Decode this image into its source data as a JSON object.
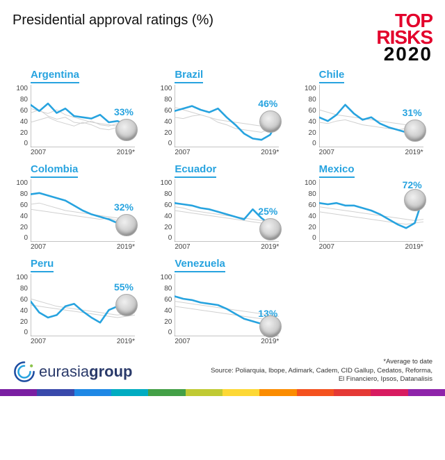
{
  "title": "Presidential approval ratings (%)",
  "brand": {
    "line1": "TOP",
    "line2": "RISKS",
    "line3": "2020"
  },
  "yaxis": {
    "min": 0,
    "max": 100,
    "ticks": [
      100,
      80,
      60,
      40,
      20,
      0
    ]
  },
  "xaxis": {
    "start": "2007",
    "end": "2019*"
  },
  "line_style": {
    "main_color": "#27a3df",
    "main_width": 2.6,
    "ghost_color": "#d0d0d0",
    "ghost_width": 1,
    "axis_color": "#888"
  },
  "charts": [
    {
      "name": "Argentina",
      "end_value": "33%",
      "main": [
        68,
        58,
        70,
        55,
        62,
        50,
        48,
        46,
        52,
        40,
        42,
        36,
        33
      ],
      "ghosts": [
        [
          55,
          60,
          50,
          45,
          48,
          40,
          38,
          42,
          36,
          34,
          38,
          32,
          30
        ],
        [
          40,
          44,
          48,
          42,
          38,
          34,
          40,
          36,
          30,
          28,
          32,
          30,
          34
        ],
        [
          62,
          58,
          54,
          60,
          52,
          48,
          44,
          40,
          38,
          36,
          34,
          32,
          30
        ]
      ]
    },
    {
      "name": "Brazil",
      "end_value": "46%",
      "main": [
        58,
        62,
        66,
        60,
        56,
        62,
        48,
        36,
        22,
        14,
        12,
        20,
        46
      ],
      "ghosts": [
        [
          64,
          60,
          56,
          52,
          48,
          44,
          42,
          40,
          38,
          36,
          34,
          36,
          34
        ],
        [
          48,
          46,
          50,
          52,
          48,
          40,
          36,
          30,
          28,
          26,
          24,
          30,
          34
        ]
      ]
    },
    {
      "name": "Chile",
      "end_value": "31%",
      "main": [
        48,
        42,
        52,
        68,
        54,
        44,
        48,
        38,
        32,
        28,
        24,
        42,
        31
      ],
      "ghosts": [
        [
          60,
          56,
          52,
          50,
          48,
          46,
          44,
          42,
          40,
          38,
          36,
          34,
          32
        ],
        [
          40,
          38,
          42,
          44,
          40,
          36,
          34,
          32,
          30,
          28,
          30,
          32,
          30
        ]
      ]
    },
    {
      "name": "Colombia",
      "end_value": "32%",
      "main": [
        76,
        78,
        74,
        70,
        66,
        58,
        50,
        44,
        40,
        36,
        30,
        28,
        32
      ],
      "ghosts": [
        [
          60,
          62,
          58,
          54,
          50,
          48,
          46,
          44,
          42,
          40,
          38,
          36,
          34
        ],
        [
          52,
          50,
          48,
          46,
          44,
          42,
          40,
          38,
          36,
          38,
          34,
          32,
          30
        ]
      ]
    },
    {
      "name": "Ecuador",
      "end_value": "25%",
      "main": [
        62,
        60,
        58,
        54,
        52,
        48,
        44,
        40,
        36,
        52,
        38,
        28,
        25
      ],
      "ghosts": [
        [
          50,
          48,
          46,
          44,
          42,
          40,
          38,
          36,
          34,
          32,
          30,
          28,
          26
        ],
        [
          56,
          54,
          50,
          48,
          46,
          44,
          42,
          40,
          38,
          36,
          34,
          32,
          30
        ]
      ]
    },
    {
      "name": "Mexico",
      "end_value": "72%",
      "main": [
        62,
        60,
        62,
        58,
        58,
        54,
        50,
        44,
        36,
        28,
        22,
        30,
        72
      ],
      "ghosts": [
        [
          56,
          54,
          52,
          50,
          48,
          46,
          44,
          42,
          40,
          38,
          36,
          34,
          36
        ],
        [
          48,
          46,
          44,
          42,
          40,
          38,
          36,
          34,
          32,
          30,
          28,
          30,
          32
        ]
      ]
    },
    {
      "name": "Peru",
      "end_value": "55%",
      "main": [
        56,
        38,
        30,
        34,
        48,
        52,
        40,
        30,
        22,
        42,
        48,
        36,
        55
      ],
      "ghosts": [
        [
          50,
          48,
          46,
          44,
          42,
          40,
          38,
          36,
          34,
          32,
          30,
          32,
          34
        ],
        [
          60,
          56,
          52,
          48,
          46,
          44,
          42,
          40,
          38,
          36,
          34,
          36,
          38
        ]
      ]
    },
    {
      "name": "Venezuela",
      "end_value": "13%",
      "main": [
        64,
        60,
        58,
        54,
        52,
        50,
        44,
        36,
        28,
        24,
        20,
        16,
        13
      ],
      "ghosts": [
        [
          56,
          54,
          52,
          50,
          48,
          46,
          44,
          42,
          40,
          38,
          36,
          34,
          32
        ],
        [
          48,
          46,
          44,
          42,
          40,
          38,
          36,
          34,
          32,
          30,
          28,
          26,
          24
        ]
      ]
    }
  ],
  "footer": {
    "logo_text_a": "eurasia",
    "logo_text_b": "group",
    "note": "*Average to date",
    "source": "Source: Poliarquia, Ibope, Adimark, Cadem, CID Gallup, Cedatos, Reforma, El Financiero, Ipsos, Datanalisis"
  },
  "stripe_colors": [
    "#7a1fa2",
    "#3949ab",
    "#1e88e5",
    "#00acc1",
    "#43a047",
    "#c0ca33",
    "#fdd835",
    "#fb8c00",
    "#f4511e",
    "#e53935",
    "#d81b60",
    "#8e24aa"
  ]
}
